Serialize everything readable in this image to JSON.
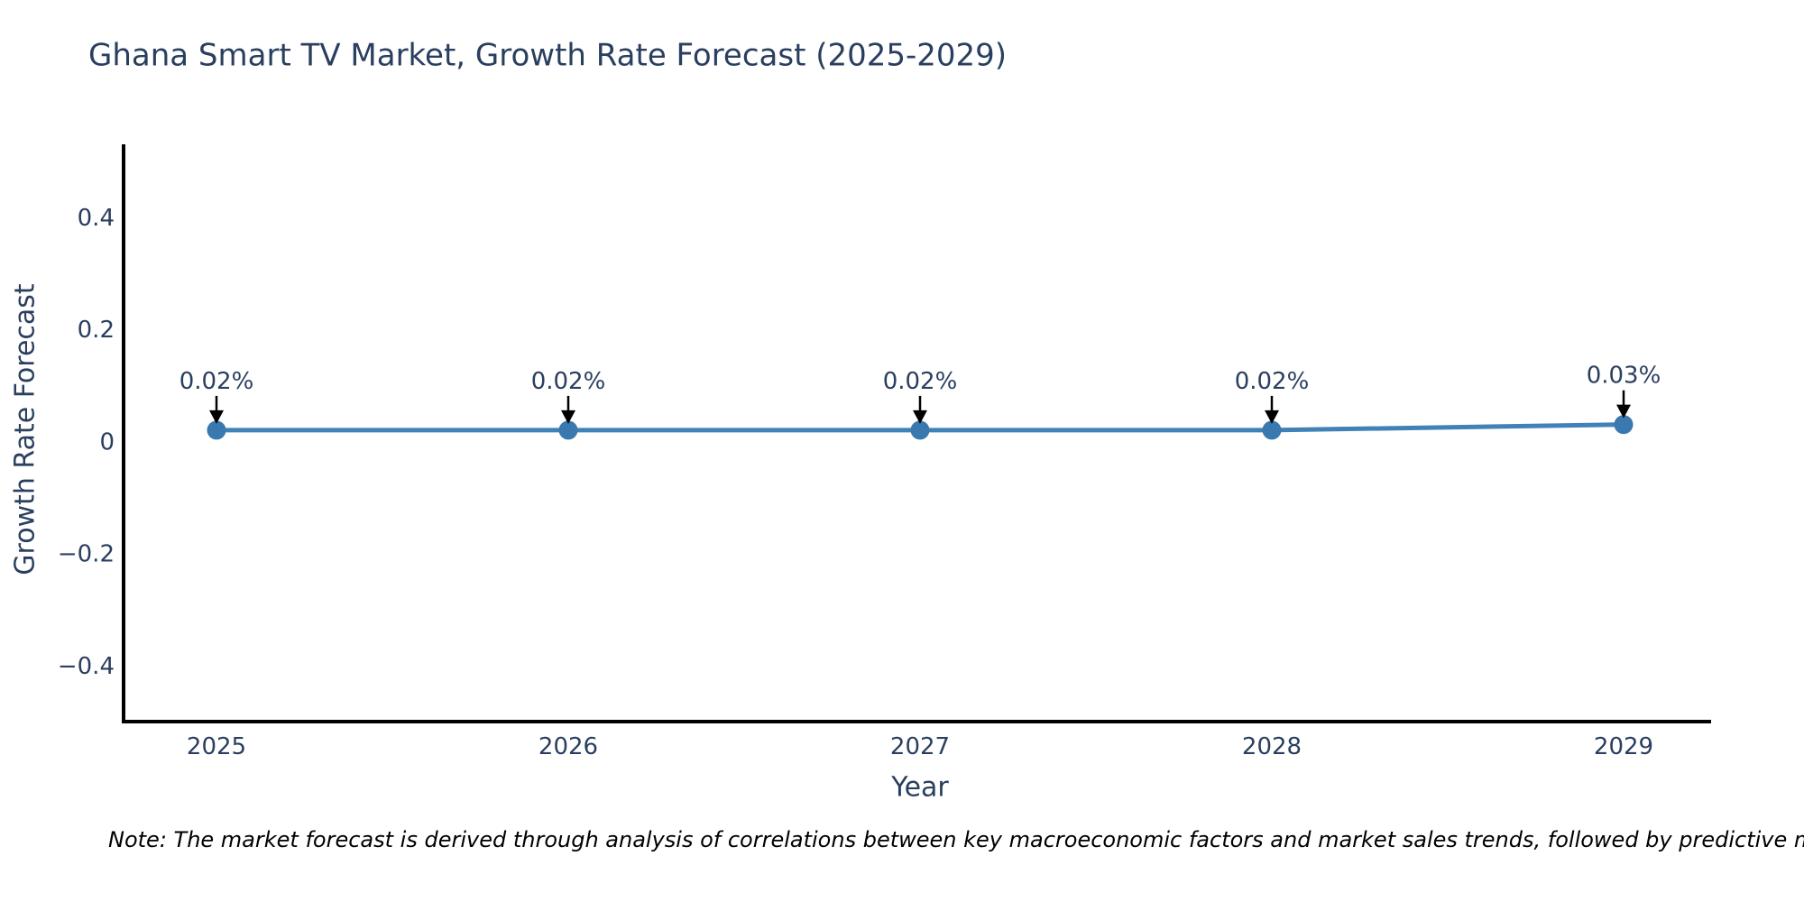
{
  "chart_data": {
    "type": "line",
    "title": "Ghana Smart TV Market, Growth Rate Forecast (2025-2029)",
    "xlabel": "Year",
    "ylabel": "Growth Rate Forecast",
    "x": [
      2025,
      2026,
      2027,
      2028,
      2029
    ],
    "series": [
      {
        "name": "Growth Rate Forecast",
        "values": [
          0.02,
          0.02,
          0.02,
          0.02,
          0.03
        ]
      }
    ],
    "point_labels": [
      "0.02%",
      "0.02%",
      "0.02%",
      "0.02%",
      "0.03%"
    ],
    "yticks": [
      0.4,
      0.2,
      0,
      -0.2,
      -0.4
    ],
    "ylim": [
      -0.5,
      0.53
    ],
    "grid": false,
    "legend": "none",
    "note": "Note: The market forecast is derived through analysis of correlations between key macroeconomic factors and market sales trends, followed by predictive modeling to project future sa",
    "colors": {
      "line": "#4081b8",
      "marker": "#3a78b0",
      "axis": "#000000",
      "text": "#2a3f5f",
      "annotation_text": "#2a3f5f",
      "annotation_arrow": "#000000",
      "note_text": "#000000"
    }
  }
}
